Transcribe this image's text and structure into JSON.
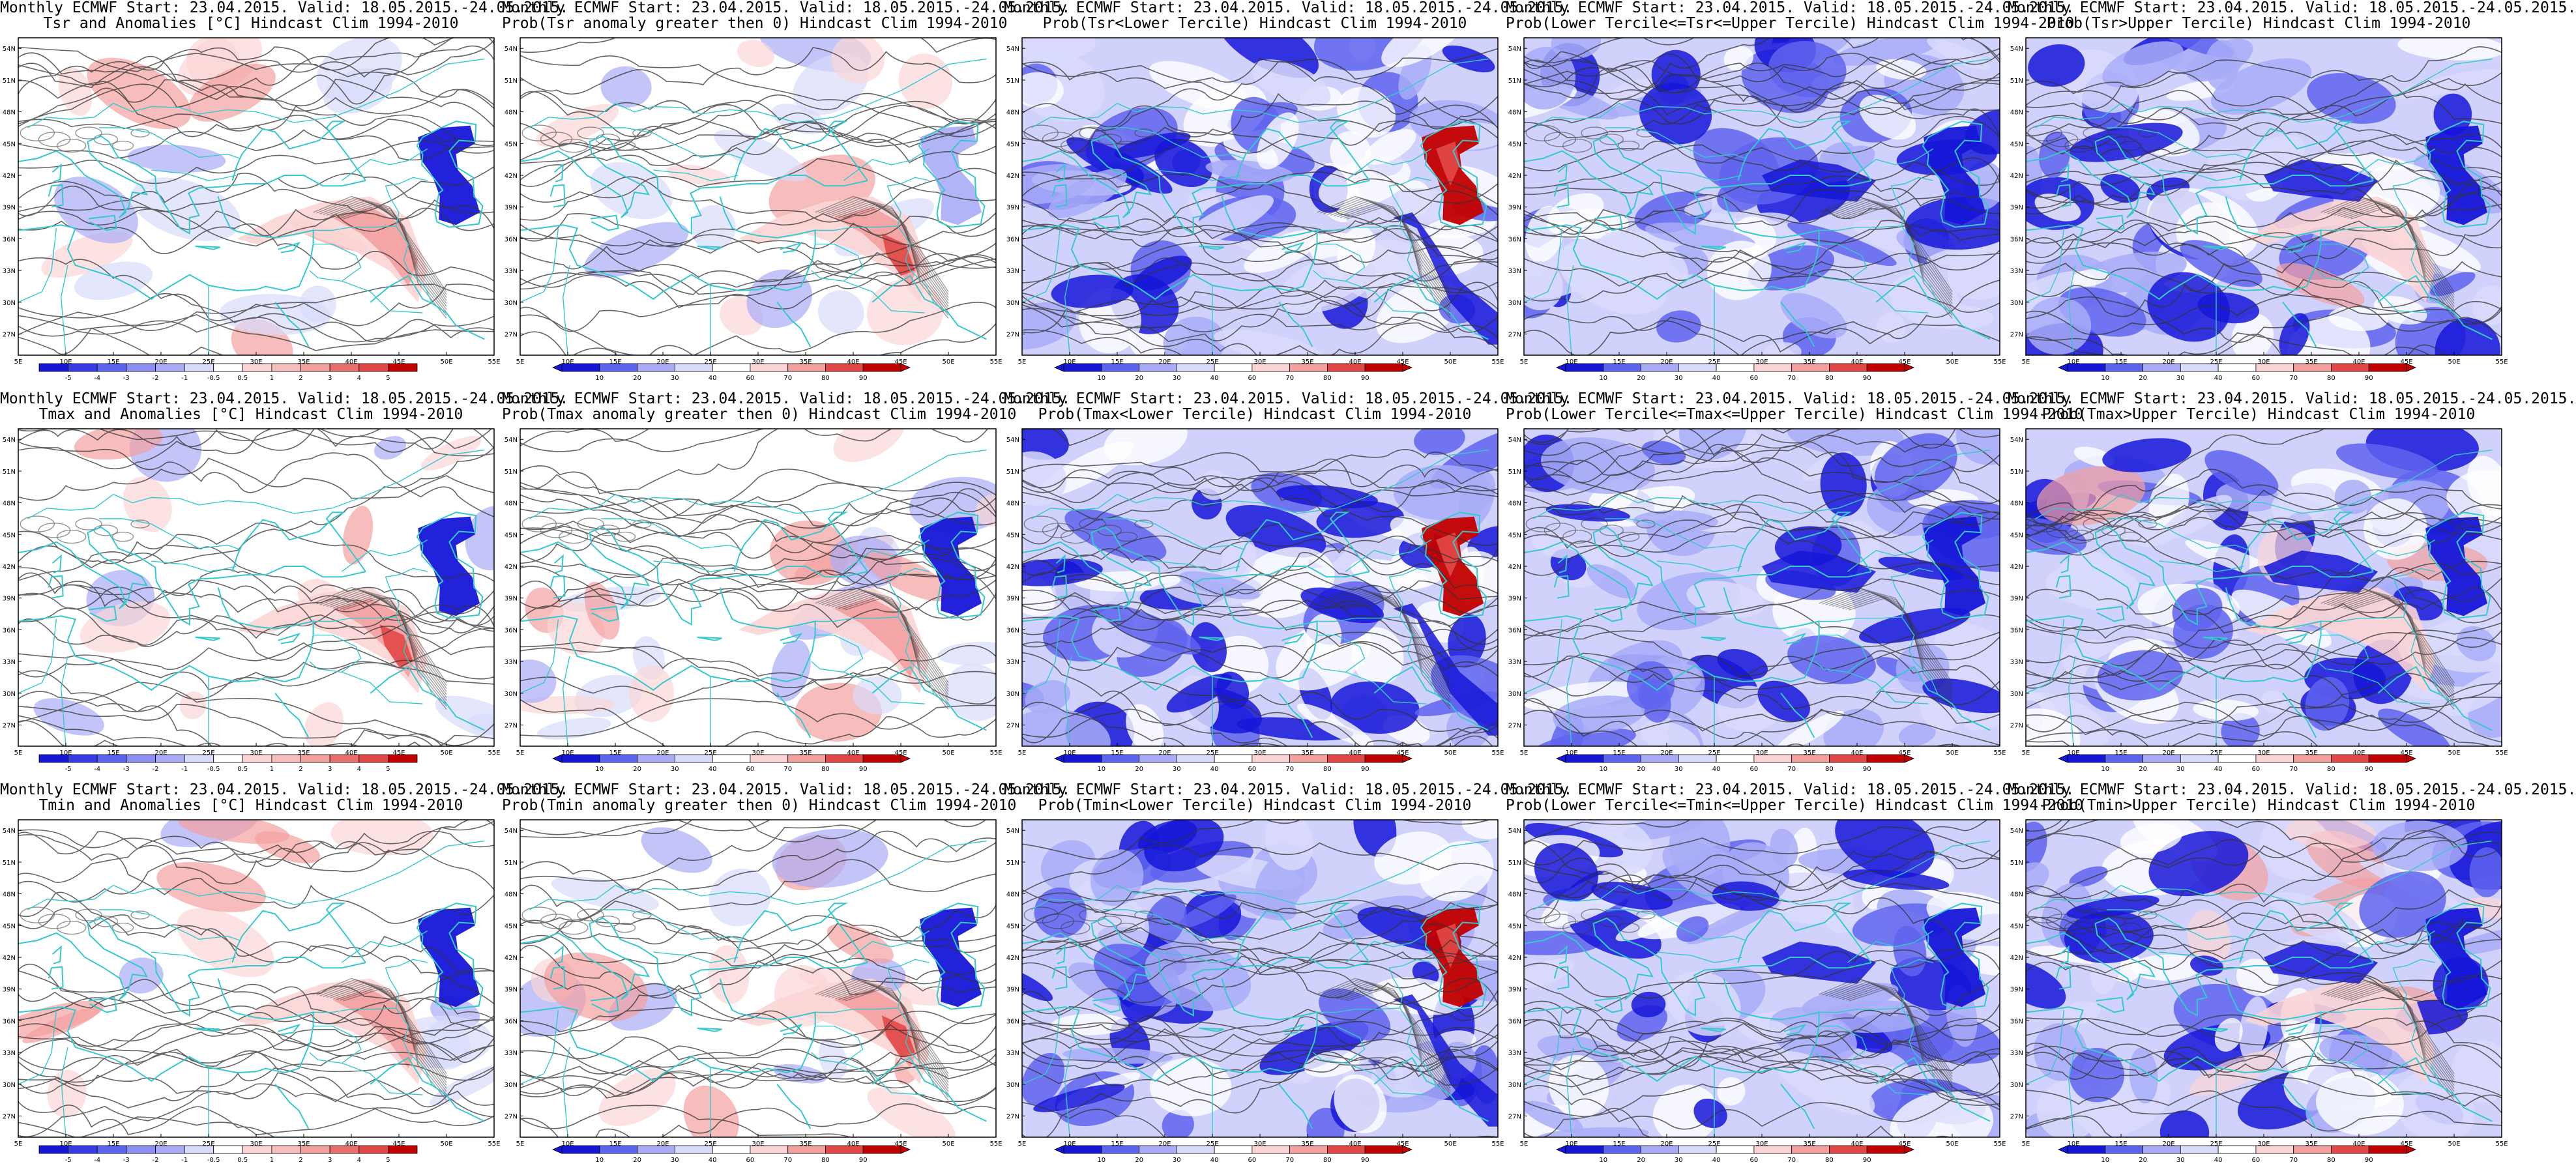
{
  "meta": {
    "model": "Monthly ECMWF",
    "start_label": "Start: 23.04.2015.",
    "valid_label": "Valid: 18.05.2015.-24.05.2015."
  },
  "axes": {
    "lat_labels": [
      "54N",
      "51N",
      "48N",
      "45N",
      "42N",
      "39N",
      "36N",
      "33N",
      "30N",
      "27N"
    ],
    "lon_labels": [
      "5E",
      "10E",
      "15E",
      "20E",
      "25E",
      "30E",
      "35E",
      "40E",
      "45E",
      "50E",
      "55E"
    ]
  },
  "colors": {
    "coast": "#36c8cc",
    "contour": "#333333",
    "deep_blue": "#1616d8",
    "mid_blue": "#5f64ee",
    "light_blue": "#a9adf7",
    "pale_blue": "#d9dbfb",
    "pale_red": "#fbd5d5",
    "light_red": "#f3a0a0",
    "mid_red": "#e24848",
    "deep_red": "#c20000"
  },
  "colorbars": {
    "anom": [
      "-5",
      "-4",
      "-3",
      "-2",
      "-1",
      "-0.5",
      "0.5",
      "1",
      "2",
      "3",
      "4",
      "5"
    ],
    "prob": [
      "10",
      "20",
      "30",
      "40",
      "60",
      "70",
      "80",
      "90"
    ]
  },
  "rows": [
    {
      "variable": "Tsr",
      "panels": [
        {
          "line1": "Monthly ECMWF Start: 23.04.2015. Valid: 18.05.2015.-24.05.2015.",
          "line2": "Tsr and Anomalies [°C] Hindcast Clim 1994-2010",
          "kind": "anom",
          "caspian": -0.8,
          "red": 0.45,
          "blue": 0.15
        },
        {
          "line1": "Monthly ECMWF Start: 23.04.2015. Valid: 18.05.2015.-24.05.2015.",
          "line2": "Prob(Tsr anomaly greater then 0) Hindcast Clim 1994-2010",
          "kind": "prob",
          "caspian": -0.2,
          "red": 0.55,
          "blue": 0.25
        },
        {
          "line1": "Monthly ECMWF Start: 23.04.2015. Valid: 18.05.2015.-24.05.2015.",
          "line2": "Prob(Tsr<Lower Tercile) Hindcast Clim 1994-2010",
          "kind": "lower",
          "caspian": 1.0,
          "red": 0.0,
          "blue": 0.75
        },
        {
          "line1": "Monthly ECMWF Start: 23.04.2015. Valid: 18.05.2015.-24.05.2015.",
          "line2": "Prob(Lower Tercile<=Tsr<=Upper Tercile) Hindcast Clim 1994-2010",
          "kind": "middle",
          "caspian": -1.0,
          "red": 0.0,
          "blue": 0.8
        },
        {
          "line1": "Monthly ECMWF Start: 23.04.2015. Valid: 18.05.2015.-24.05.2015.",
          "line2": "Prob(Tsr>Upper Tercile) Hindcast Clim 1994-2010",
          "kind": "upper",
          "caspian": -1.0,
          "red": 0.05,
          "blue": 0.7
        }
      ]
    },
    {
      "variable": "Tmax",
      "panels": [
        {
          "line1": "Monthly ECMWF Start: 23.04.2015. Valid: 18.05.2015.-24.05.2015.",
          "line2": "Tmax and Anomalies [°C] Hindcast Clim 1994-2010",
          "kind": "anom",
          "caspian": -0.8,
          "red": 0.55,
          "blue": 0.1
        },
        {
          "line1": "Monthly ECMWF Start: 23.04.2015. Valid: 18.05.2015.-24.05.2015.",
          "line2": "Prob(Tmax anomaly greater then 0) Hindcast Clim 1994-2010",
          "kind": "prob",
          "caspian": -1.0,
          "red": 0.5,
          "blue": 0.35
        },
        {
          "line1": "Monthly ECMWF Start: 23.04.2015. Valid: 18.05.2015.-24.05.2015.",
          "line2": "Prob(Tmax<Lower Tercile) Hindcast Clim 1994-2010",
          "kind": "lower",
          "caspian": 1.0,
          "red": 0.0,
          "blue": 0.75
        },
        {
          "line1": "Monthly ECMWF Start: 23.04.2015. Valid: 18.05.2015.-24.05.2015.",
          "line2": "Prob(Lower Tercile<=Tmax<=Upper Tercile) Hindcast Clim 1994-2010",
          "kind": "middle",
          "caspian": -0.6,
          "red": 0.0,
          "blue": 0.8
        },
        {
          "line1": "Monthly ECMWF Start: 23.04.2015. Valid: 18.05.2015.-24.05.2015.",
          "line2": "Prob(Tmax>Upper Tercile) Hindcast Clim 1994-2010",
          "kind": "upper",
          "caspian": -1.0,
          "red": 0.05,
          "blue": 0.75
        }
      ]
    },
    {
      "variable": "Tmin",
      "panels": [
        {
          "line1": "Monthly ECMWF Start: 23.04.2015. Valid: 18.05.2015.-24.05.2015.",
          "line2": "Tmin and Anomalies [°C] Hindcast Clim 1994-2010",
          "kind": "anom",
          "caspian": -0.6,
          "red": 0.5,
          "blue": 0.1
        },
        {
          "line1": "Monthly ECMWF Start: 23.04.2015. Valid: 18.05.2015.-24.05.2015.",
          "line2": "Prob(Tmin anomaly greater then 0) Hindcast Clim 1994-2010",
          "kind": "prob",
          "caspian": -1.0,
          "red": 0.65,
          "blue": 0.25
        },
        {
          "line1": "Monthly ECMWF Start: 23.04.2015. Valid: 18.05.2015.-24.05.2015.",
          "line2": "Prob(Tmin<Lower Tercile) Hindcast Clim 1994-2010",
          "kind": "lower",
          "caspian": 1.0,
          "red": 0.0,
          "blue": 0.8
        },
        {
          "line1": "Monthly ECMWF Start: 23.04.2015. Valid: 18.05.2015.-24.05.2015.",
          "line2": "Prob(Lower Tercile<=Tmin<=Upper Tercile) Hindcast Clim 1994-2010",
          "kind": "middle",
          "caspian": -1.0,
          "red": 0.0,
          "blue": 0.8
        },
        {
          "line1": "Monthly ECMWF Start: 23.04.2015. Valid: 18.05.2015.-24.05.2015.",
          "line2": "Prob(Tmin>Upper Tercile) Hindcast Clim 1994-2010",
          "kind": "upper",
          "caspian": -1.0,
          "red": 0.15,
          "blue": 0.7
        }
      ]
    }
  ]
}
